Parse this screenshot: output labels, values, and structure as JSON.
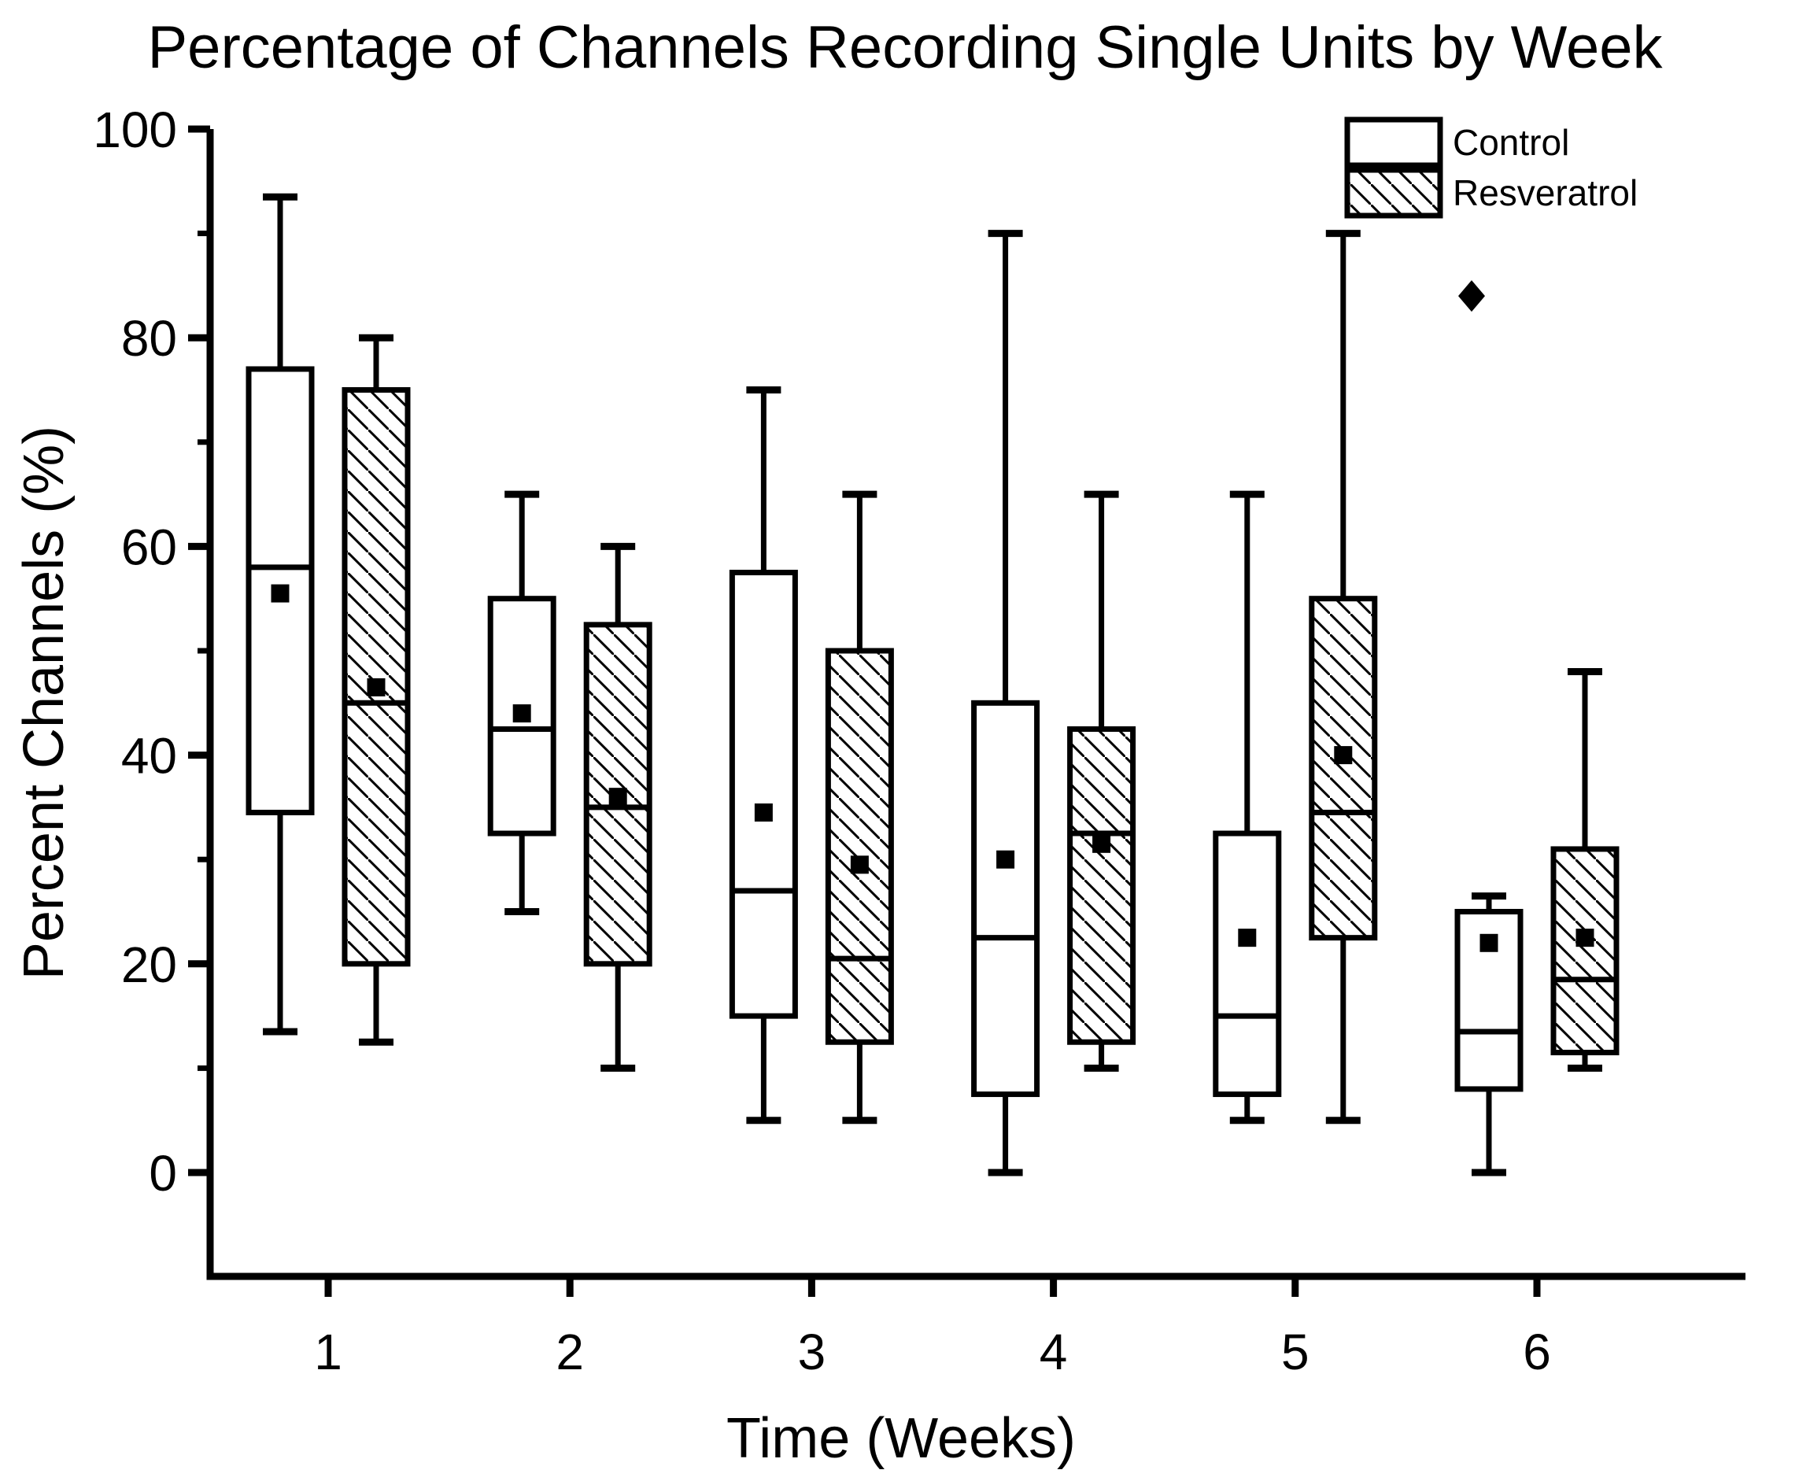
{
  "figure": {
    "background": "#ffffff",
    "ink": "#000000"
  },
  "chart_data": {
    "type": "box",
    "title": "Percentage of Channels Recording Single Units by Week",
    "xlabel": "Time (Weeks)",
    "ylabel": "Percent Channels (%)",
    "categories": [
      "1",
      "2",
      "3",
      "4",
      "5",
      "6"
    ],
    "ylim": [
      -10,
      100
    ],
    "y_major_ticks": [
      0,
      20,
      40,
      60,
      80,
      100
    ],
    "y_minor_ticks": [
      10,
      30,
      50,
      70,
      90
    ],
    "grid": false,
    "legend_position": "top-right",
    "mean_marker": "filled-square",
    "outlier_marker": "filled-diamond",
    "series": [
      {
        "name": "Control",
        "hatched": false,
        "boxes": [
          {
            "week": 1,
            "min": 13.5,
            "q1": 34.5,
            "median": 58,
            "mean": 55.5,
            "q3": 77,
            "max": 93.5
          },
          {
            "week": 2,
            "min": 25,
            "q1": 32.5,
            "median": 42.5,
            "mean": 44,
            "q3": 55,
            "max": 65
          },
          {
            "week": 3,
            "min": 5,
            "q1": 15,
            "median": 27,
            "mean": 34.5,
            "q3": 57.5,
            "max": 75
          },
          {
            "week": 4,
            "min": 0,
            "q1": 7.5,
            "median": 22.5,
            "mean": 30,
            "q3": 45,
            "max": 90
          },
          {
            "week": 5,
            "min": 5,
            "q1": 7.5,
            "median": 15,
            "mean": 22.5,
            "q3": 32.5,
            "max": 65
          },
          {
            "week": 6,
            "min": 0,
            "q1": 8,
            "median": 13.5,
            "mean": 22,
            "q3": 25,
            "max": 26.5
          }
        ]
      },
      {
        "name": "Resveratrol",
        "hatched": true,
        "boxes": [
          {
            "week": 1,
            "min": 12.5,
            "q1": 20,
            "median": 45,
            "mean": 46.5,
            "q3": 75,
            "max": 80
          },
          {
            "week": 2,
            "min": 10,
            "q1": 20,
            "median": 35,
            "mean": 36,
            "q3": 52.5,
            "max": 60
          },
          {
            "week": 3,
            "min": 5,
            "q1": 12.5,
            "median": 20.5,
            "mean": 29.5,
            "q3": 50,
            "max": 65
          },
          {
            "week": 4,
            "min": 10,
            "q1": 12.5,
            "median": 32.5,
            "mean": 31.5,
            "q3": 42.5,
            "max": 65
          },
          {
            "week": 5,
            "min": 5,
            "q1": 22.5,
            "median": 34.5,
            "mean": 40,
            "q3": 55,
            "max": 90
          },
          {
            "week": 6,
            "min": 10,
            "q1": 11.5,
            "median": 18.5,
            "mean": 22.5,
            "q3": 31,
            "max": 48
          }
        ]
      }
    ],
    "outliers": [
      {
        "series": "Control",
        "week": 6,
        "value": 84
      }
    ]
  }
}
